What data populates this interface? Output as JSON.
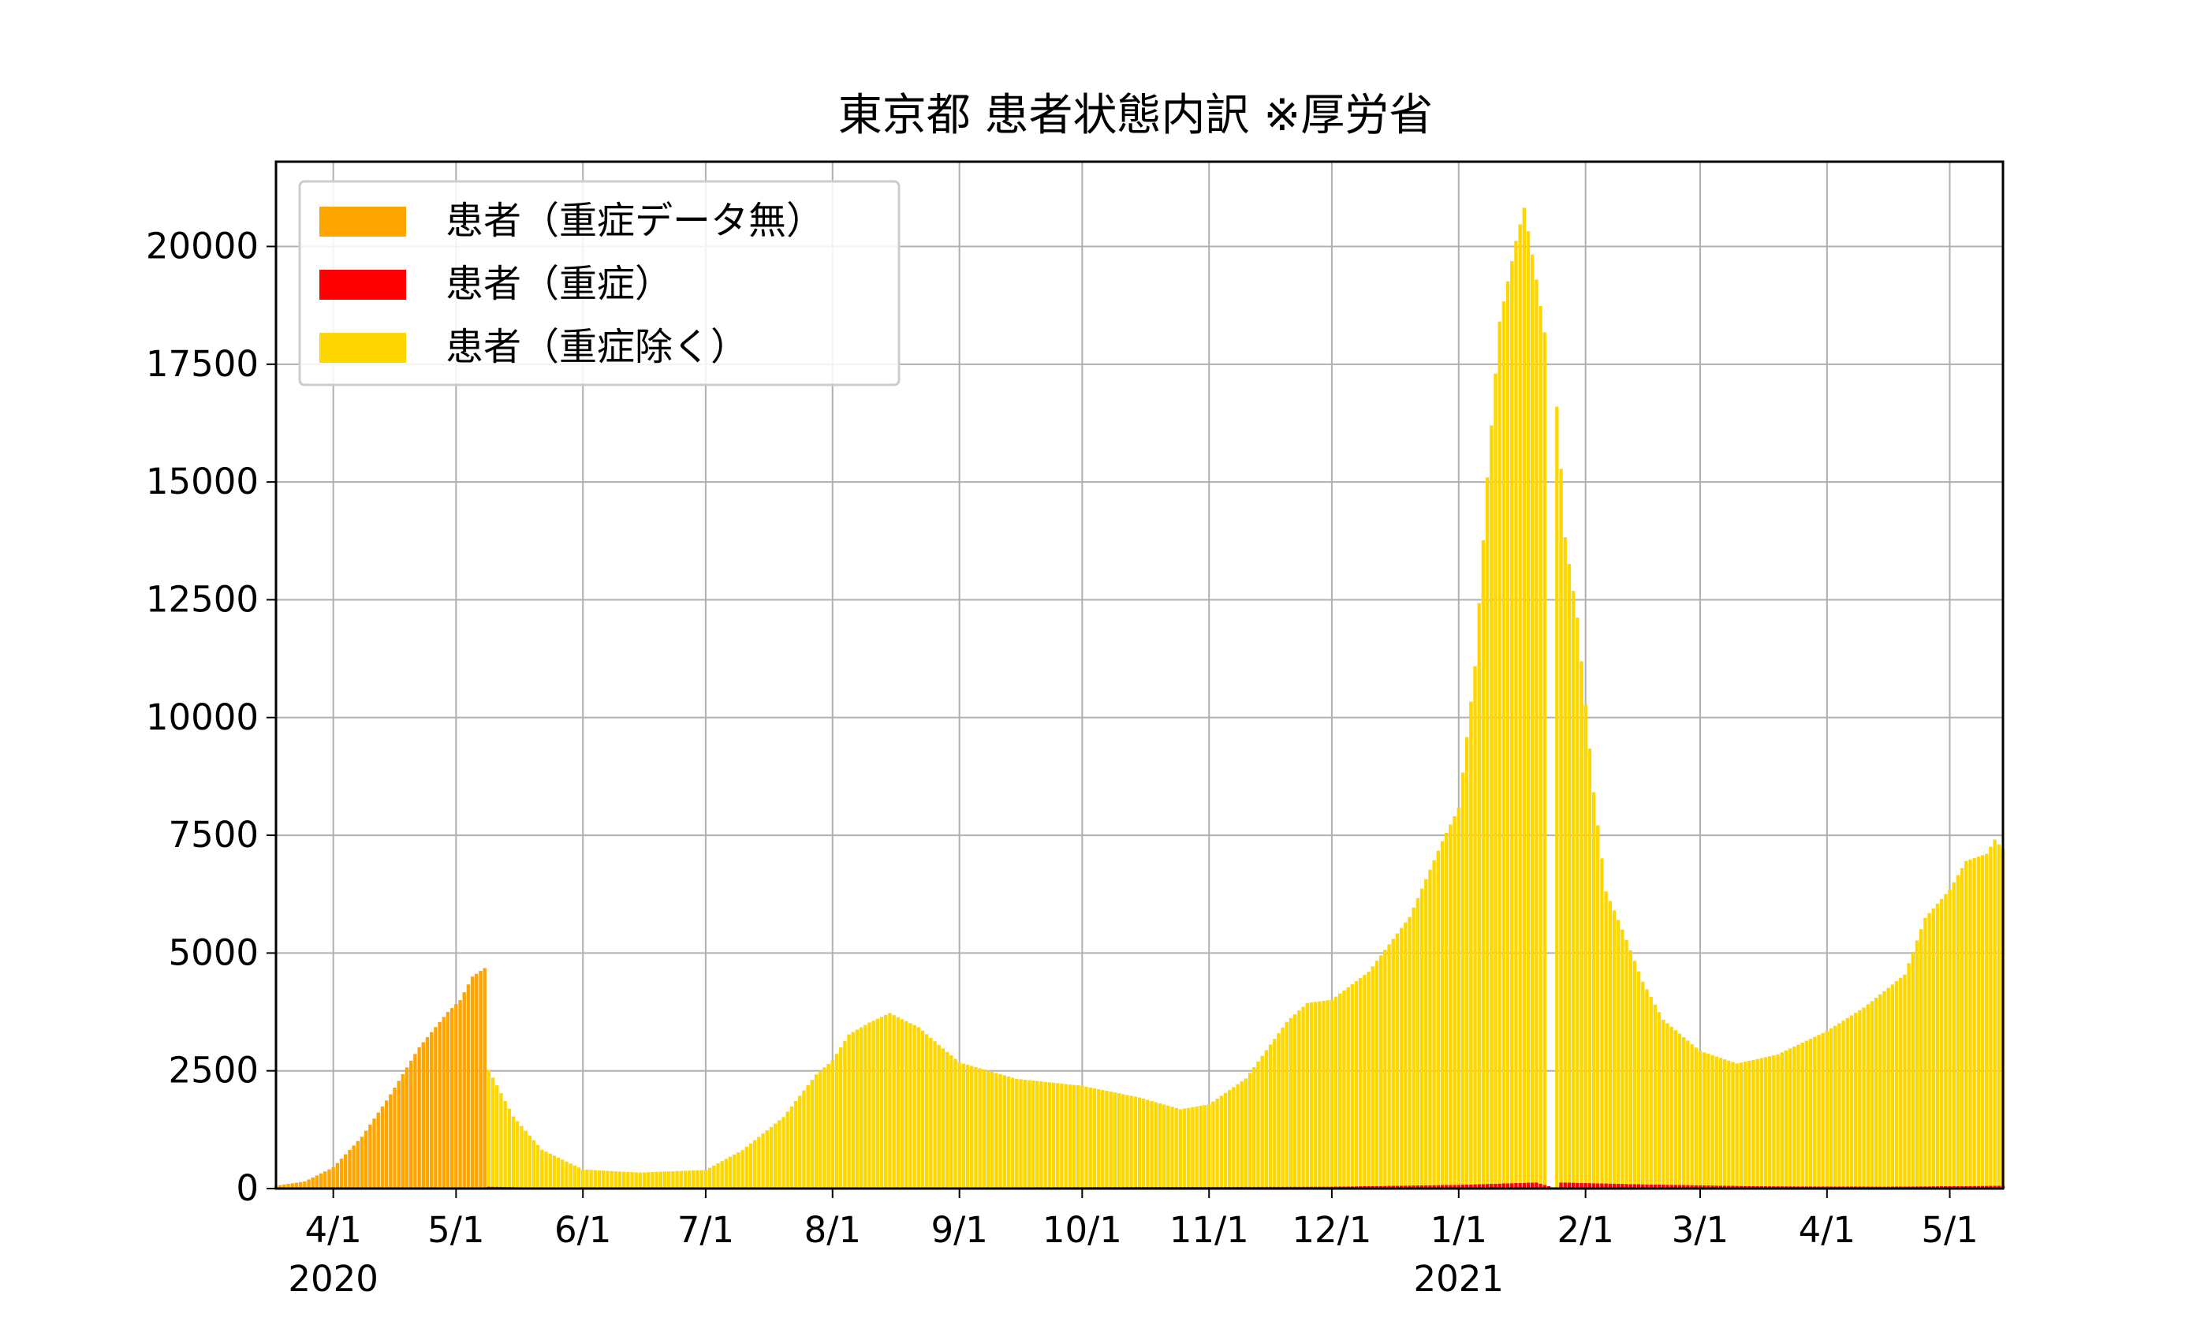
{
  "chart_data": {
    "type": "bar",
    "stacked": true,
    "title": "東京都 患者状態内訳 ※厚労省",
    "xlabel": "",
    "ylabel": "",
    "ylim": [
      0,
      21800
    ],
    "xlim": [
      "2020-03-18",
      "2021-05-14"
    ],
    "grid": true,
    "legend_position": "top-left",
    "y_ticks": [
      0,
      2500,
      5000,
      7500,
      10000,
      12500,
      15000,
      17500,
      20000
    ],
    "x_ticks": [
      {
        "date": "2020-04-01",
        "label": "4/1",
        "year": "2020"
      },
      {
        "date": "2020-05-01",
        "label": "5/1",
        "year": ""
      },
      {
        "date": "2020-06-01",
        "label": "6/1",
        "year": ""
      },
      {
        "date": "2020-07-01",
        "label": "7/1",
        "year": ""
      },
      {
        "date": "2020-08-01",
        "label": "8/1",
        "year": ""
      },
      {
        "date": "2020-09-01",
        "label": "9/1",
        "year": ""
      },
      {
        "date": "2020-10-01",
        "label": "10/1",
        "year": ""
      },
      {
        "date": "2020-11-01",
        "label": "11/1",
        "year": ""
      },
      {
        "date": "2020-12-01",
        "label": "12/1",
        "year": ""
      },
      {
        "date": "2021-01-01",
        "label": "1/1",
        "year": "2021"
      },
      {
        "date": "2021-02-01",
        "label": "2/1",
        "year": ""
      },
      {
        "date": "2021-03-01",
        "label": "3/1",
        "year": ""
      },
      {
        "date": "2021-04-01",
        "label": "4/1",
        "year": ""
      },
      {
        "date": "2021-05-01",
        "label": "5/1",
        "year": ""
      }
    ],
    "series": [
      {
        "name": "患者（重症データ無）",
        "color": "#ffa500",
        "points": [
          [
            "2020-03-18",
            60
          ],
          [
            "2020-03-25",
            150
          ],
          [
            "2020-04-01",
            450
          ],
          [
            "2020-04-08",
            1100
          ],
          [
            "2020-04-15",
            2000
          ],
          [
            "2020-04-22",
            3000
          ],
          [
            "2020-04-29",
            3750
          ],
          [
            "2020-05-02",
            4000
          ],
          [
            "2020-05-05",
            4500
          ],
          [
            "2020-05-08",
            4680
          ]
        ]
      },
      {
        "name": "患者（重症）",
        "color": "#ff0000",
        "points": [
          [
            "2020-05-09",
            40
          ],
          [
            "2020-05-20",
            25
          ],
          [
            "2020-06-10",
            10
          ],
          [
            "2020-08-15",
            25
          ],
          [
            "2020-12-01",
            40
          ],
          [
            "2021-01-01",
            80
          ],
          [
            "2021-01-20",
            130
          ],
          [
            "2021-01-25",
            0
          ],
          [
            "2021-01-26",
            130
          ],
          [
            "2021-02-15",
            90
          ],
          [
            "2021-03-15",
            50
          ],
          [
            "2021-04-15",
            40
          ],
          [
            "2021-05-14",
            60
          ]
        ]
      },
      {
        "name": "患者（重症除く）",
        "color": "#ffd700",
        "points": [
          [
            "2020-05-09",
            2480
          ],
          [
            "2020-05-15",
            1500
          ],
          [
            "2020-05-22",
            800
          ],
          [
            "2020-06-01",
            390
          ],
          [
            "2020-06-15",
            330
          ],
          [
            "2020-07-01",
            380
          ],
          [
            "2020-07-10",
            800
          ],
          [
            "2020-07-20",
            1500
          ],
          [
            "2020-07-28",
            2400
          ],
          [
            "2020-08-01",
            2700
          ],
          [
            "2020-08-05",
            3250
          ],
          [
            "2020-08-10",
            3500
          ],
          [
            "2020-08-15",
            3700
          ],
          [
            "2020-08-22",
            3400
          ],
          [
            "2020-09-01",
            2650
          ],
          [
            "2020-09-15",
            2300
          ],
          [
            "2020-10-01",
            2150
          ],
          [
            "2020-10-15",
            1900
          ],
          [
            "2020-10-25",
            1650
          ],
          [
            "2020-11-01",
            1750
          ],
          [
            "2020-11-10",
            2300
          ],
          [
            "2020-11-20",
            3500
          ],
          [
            "2020-11-25",
            3900
          ],
          [
            "2020-12-01",
            3970
          ],
          [
            "2020-12-10",
            4550
          ],
          [
            "2020-12-20",
            5700
          ],
          [
            "2020-12-28",
            7300
          ],
          [
            "2021-01-01",
            8000
          ],
          [
            "2021-01-05",
            11000
          ],
          [
            "2021-01-08",
            15000
          ],
          [
            "2021-01-11",
            18300
          ],
          [
            "2021-01-15",
            20000
          ],
          [
            "2021-01-17",
            20700
          ],
          [
            "2021-01-19",
            19700
          ],
          [
            "2021-01-22",
            18100
          ],
          [
            "2021-01-23",
            0
          ],
          [
            "2021-01-24",
            0
          ],
          [
            "2021-01-25",
            16600
          ],
          [
            "2021-01-27",
            13700
          ],
          [
            "2021-01-30",
            12000
          ],
          [
            "2021-02-03",
            8300
          ],
          [
            "2021-02-06",
            6200
          ],
          [
            "2021-02-10",
            5400
          ],
          [
            "2021-02-15",
            4300
          ],
          [
            "2021-02-20",
            3500
          ],
          [
            "2021-03-01",
            2850
          ],
          [
            "2021-03-10",
            2600
          ],
          [
            "2021-03-20",
            2800
          ],
          [
            "2021-04-01",
            3300
          ],
          [
            "2021-04-10",
            3800
          ],
          [
            "2021-04-20",
            4500
          ],
          [
            "2021-04-25",
            5700
          ],
          [
            "2021-05-01",
            6300
          ],
          [
            "2021-05-05",
            6900
          ],
          [
            "2021-05-10",
            7050
          ],
          [
            "2021-05-12",
            7350
          ],
          [
            "2021-05-14",
            7150
          ]
        ]
      }
    ]
  }
}
